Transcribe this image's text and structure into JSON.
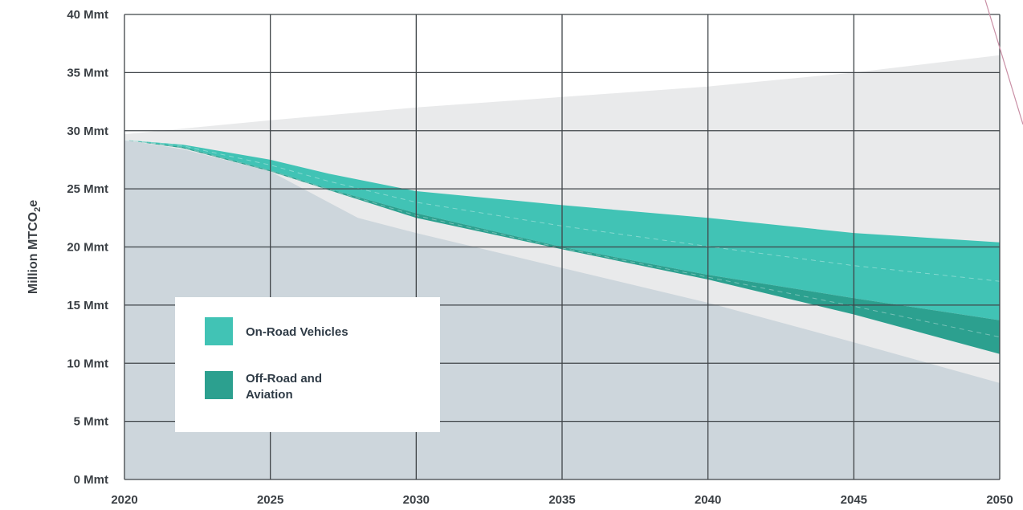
{
  "chart_data": {
    "type": "area",
    "ylabel": "Million MTCO",
    "ylabel_subscript": "2",
    "ylabel_suffix": "e",
    "ylim": [
      0,
      40
    ],
    "xlim": [
      2020,
      2050
    ],
    "y_ticks": [
      0,
      5,
      10,
      15,
      20,
      25,
      30,
      35,
      40
    ],
    "y_tick_labels": [
      "0 Mmt",
      "5 Mmt",
      "10 Mmt",
      "15 Mmt",
      "20 Mmt",
      "25 Mmt",
      "30 Mmt",
      "35 Mmt",
      "40 Mmt"
    ],
    "x_ticks": [
      2020,
      2025,
      2030,
      2035,
      2040,
      2045,
      2050
    ],
    "x_tick_labels": [
      "2020",
      "2025",
      "2030",
      "2035",
      "2040",
      "2045",
      "2050"
    ],
    "grid": true,
    "legend_position": "bottom-left",
    "colors": {
      "baseline_area": "#e9eaeb",
      "remaining_area": "#cdd6dc",
      "on_road": "#41c3b5",
      "off_road": "#2ca08f",
      "grid": "#3f4448"
    },
    "series": [
      {
        "name": "On-Road Vehicles",
        "x": [
          2020,
          2022,
          2025,
          2027,
          2030,
          2035,
          2040,
          2045,
          2050
        ],
        "upper": [
          29.2,
          28.8,
          27.5,
          26.3,
          24.8,
          23.6,
          22.5,
          21.2,
          20.4
        ],
        "lower": [
          29.2,
          28.6,
          26.6,
          25.0,
          22.9,
          20.0,
          17.6,
          15.6,
          13.7
        ]
      },
      {
        "name": "Off-Road and\nAviation",
        "x": [
          2020,
          2022,
          2025,
          2027,
          2030,
          2035,
          2040,
          2045,
          2050
        ],
        "upper": [
          29.2,
          28.6,
          26.6,
          25.0,
          22.9,
          20.0,
          17.6,
          15.6,
          13.7
        ],
        "lower": [
          29.2,
          28.5,
          26.5,
          24.9,
          22.5,
          19.8,
          17.2,
          14.2,
          10.8
        ]
      }
    ],
    "background_areas": {
      "baseline": {
        "x": [
          2020,
          2025,
          2030,
          2035,
          2040,
          2045,
          2050
        ],
        "y": [
          29.7,
          30.9,
          32.0,
          32.9,
          33.8,
          35.0,
          36.5
        ]
      },
      "remaining": {
        "x": [
          2020,
          2022,
          2025,
          2028,
          2030,
          2035,
          2040,
          2045,
          2050
        ],
        "y": [
          29.2,
          28.4,
          26.5,
          22.5,
          21.2,
          18.2,
          15.2,
          11.8,
          8.3
        ]
      }
    },
    "legend": [
      {
        "label": "On-Road Vehicles",
        "color": "#41c3b5"
      },
      {
        "label": "Off-Road and\nAviation",
        "color": "#2ca08f"
      }
    ]
  }
}
